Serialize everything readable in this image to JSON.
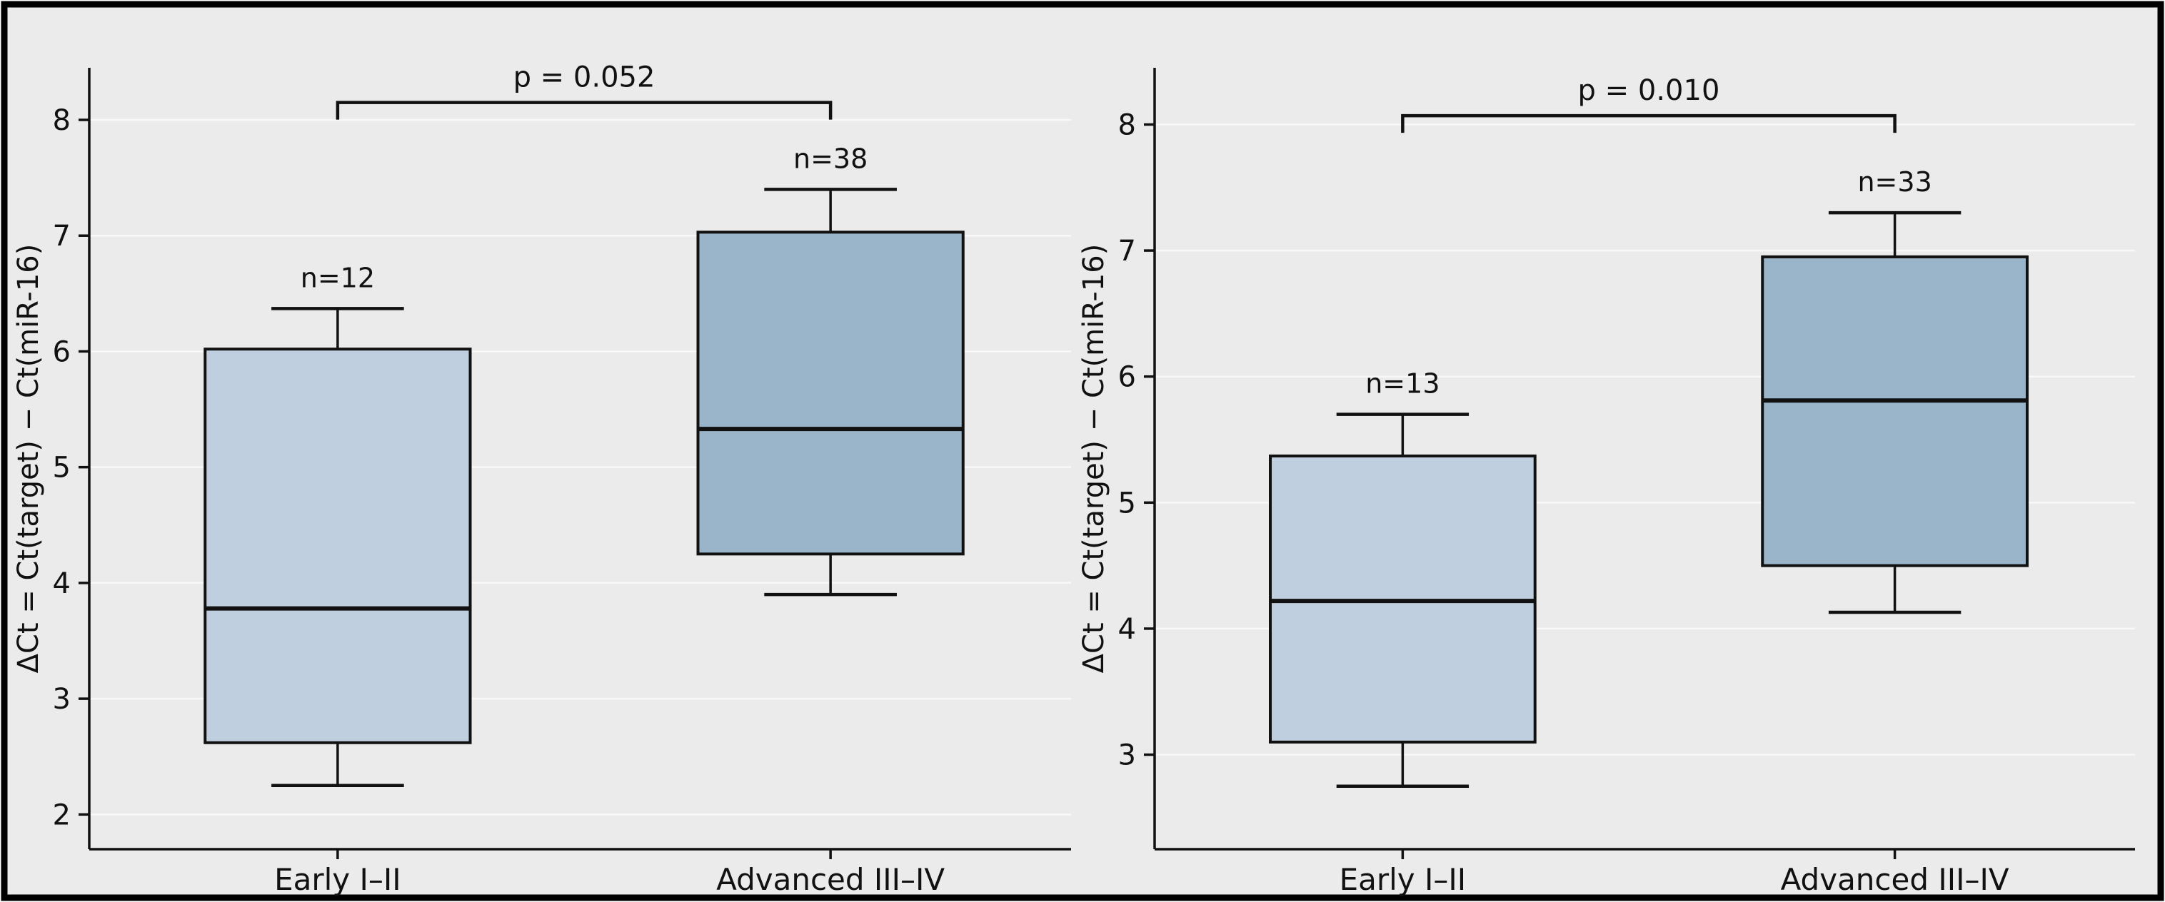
{
  "figure": {
    "background_color": "#ebebeb",
    "outer_background_color": "#ffffff",
    "border_color": "#000000",
    "gridline_color": "#f8f8f8",
    "axis_color": "#111111",
    "text_color": "#111111"
  },
  "chart_data": [
    {
      "type": "box",
      "panel": "left",
      "title": "",
      "xlabel": "",
      "ylabel": "ΔCt = Ct(target) − Ct(miR-16)",
      "categories": [
        "Early I–II",
        "Advanced III–IV"
      ],
      "yticks": [
        2,
        3,
        4,
        5,
        6,
        7,
        8
      ],
      "ylim": [
        1.7,
        8.45
      ],
      "grid": "horizontal-only",
      "legend": "none",
      "series": [
        {
          "category": "Early I–II",
          "n": 12,
          "n_label": "n=12",
          "whisker_low": 2.25,
          "q1": 2.62,
          "median": 3.78,
          "q3": 6.02,
          "whisker_high": 6.37,
          "fill": "#bfcfdf"
        },
        {
          "category": "Advanced III–IV",
          "n": 38,
          "n_label": "n=38",
          "whisker_low": 3.9,
          "q1": 4.25,
          "median": 5.33,
          "q3": 7.03,
          "whisker_high": 7.4,
          "fill": "#9ab5ca"
        }
      ],
      "significance": {
        "label": "p = 0.052",
        "bracket_y": 8.15
      }
    },
    {
      "type": "box",
      "panel": "right",
      "title": "",
      "xlabel": "",
      "ylabel": "ΔCt = Ct(target) − Ct(miR-16)",
      "categories": [
        "Early I–II",
        "Advanced III–IV"
      ],
      "yticks": [
        3,
        4,
        5,
        6,
        7,
        8
      ],
      "ylim": [
        2.25,
        8.45
      ],
      "grid": "horizontal-only",
      "legend": "none",
      "series": [
        {
          "category": "Early I–II",
          "n": 13,
          "n_label": "n=13",
          "whisker_low": 2.75,
          "q1": 3.1,
          "median": 4.22,
          "q3": 5.37,
          "whisker_high": 5.7,
          "fill": "#bfcfdf"
        },
        {
          "category": "Advanced III–IV",
          "n": 33,
          "n_label": "n=33",
          "whisker_low": 4.13,
          "q1": 4.5,
          "median": 5.81,
          "q3": 6.95,
          "whisker_high": 7.3,
          "fill": "#9ab5ca"
        }
      ],
      "significance": {
        "label": "p = 0.010",
        "bracket_y": 8.07
      }
    }
  ]
}
